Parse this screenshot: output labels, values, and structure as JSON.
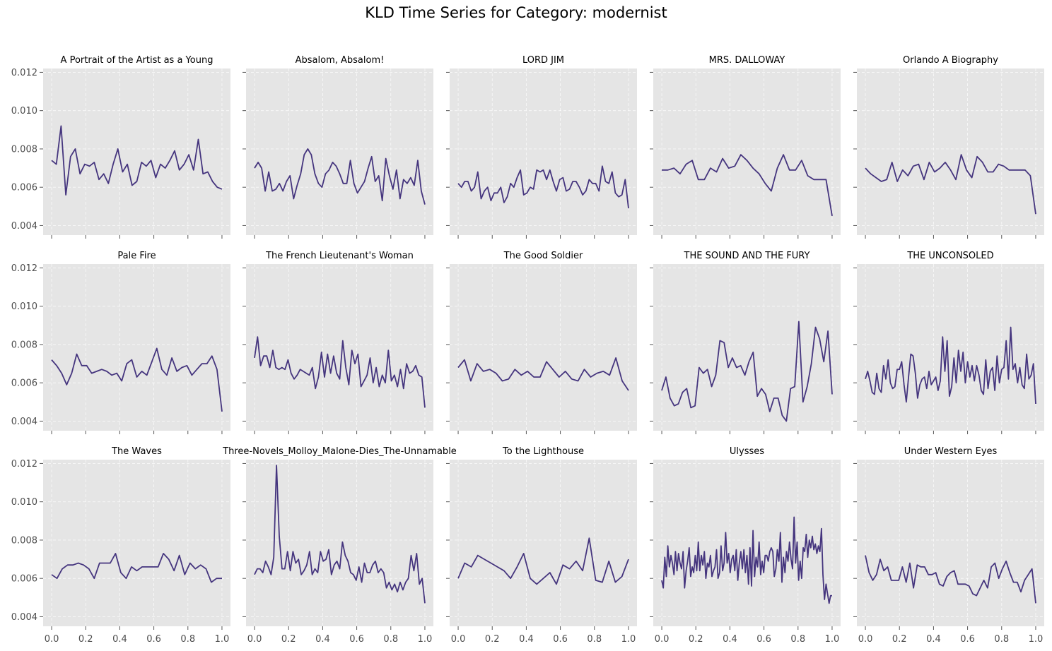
{
  "figure": {
    "suptitle": "KLD Time Series for Category: modernist",
    "line_color": "#45357e",
    "panel_bg": "#e5e5e5",
    "grid_color": "#ffffff"
  },
  "chart_data": {
    "type": "line",
    "layout": "3x5 small multiples, shared axes",
    "xlim": [
      -0.05,
      1.05
    ],
    "ylim": [
      0.0035,
      0.0122
    ],
    "xticks": [
      0.0,
      0.2,
      0.4,
      0.6,
      0.8,
      1.0
    ],
    "xtick_labels": [
      "0.0",
      "0.2",
      "0.4",
      "0.6",
      "0.8",
      "1.0"
    ],
    "yticks": [
      0.004,
      0.006,
      0.008,
      0.01,
      0.012
    ],
    "ytick_labels": [
      "0.004",
      "0.006",
      "0.008",
      "0.010",
      "0.012"
    ],
    "grid": true,
    "panels": [
      {
        "title": "A Portrait of the Artist as a Young",
        "y": [
          0.0074,
          0.0072,
          0.0092,
          0.0056,
          0.0076,
          0.008,
          0.0067,
          0.0072,
          0.0071,
          0.0073,
          0.0064,
          0.0067,
          0.0062,
          0.0072,
          0.008,
          0.0068,
          0.0072,
          0.0061,
          0.0063,
          0.0073,
          0.0071,
          0.0074,
          0.0065,
          0.0072,
          0.007,
          0.0074,
          0.0079,
          0.0069,
          0.0072,
          0.0077,
          0.0069,
          0.0085,
          0.0067,
          0.0068,
          0.0063,
          0.006,
          0.0059
        ]
      },
      {
        "title": "Absalom, Absalom!",
        "y": [
          0.007,
          0.0073,
          0.007,
          0.0058,
          0.0068,
          0.0058,
          0.0059,
          0.0062,
          0.0058,
          0.0063,
          0.0066,
          0.0054,
          0.0061,
          0.0067,
          0.0077,
          0.008,
          0.0077,
          0.0067,
          0.0062,
          0.006,
          0.0067,
          0.0069,
          0.0073,
          0.0071,
          0.0067,
          0.0062,
          0.0062,
          0.0074,
          0.0062,
          0.0057,
          0.006,
          0.0063,
          0.007,
          0.0076,
          0.0063,
          0.0066,
          0.0053,
          0.0075,
          0.0066,
          0.0059,
          0.0069,
          0.0054,
          0.0064,
          0.0062,
          0.0065,
          0.0061,
          0.0074,
          0.0058,
          0.0051
        ]
      },
      {
        "title": "LORD JIM",
        "y": [
          0.0062,
          0.006,
          0.0063,
          0.0063,
          0.0058,
          0.006,
          0.0068,
          0.0054,
          0.0058,
          0.006,
          0.0053,
          0.0057,
          0.0057,
          0.006,
          0.0052,
          0.0055,
          0.0062,
          0.006,
          0.0065,
          0.0069,
          0.0056,
          0.0057,
          0.006,
          0.0059,
          0.0069,
          0.0068,
          0.0069,
          0.0064,
          0.0069,
          0.0063,
          0.0058,
          0.0064,
          0.0065,
          0.0058,
          0.0059,
          0.0063,
          0.0063,
          0.006,
          0.0056,
          0.0058,
          0.0064,
          0.0062,
          0.0062,
          0.0058,
          0.0071,
          0.0063,
          0.0062,
          0.0068,
          0.0057,
          0.0055,
          0.0056,
          0.0064,
          0.0049
        ]
      },
      {
        "title": "MRS. DALLOWAY",
        "y": [
          0.0069,
          0.0069,
          0.007,
          0.0067,
          0.0072,
          0.0074,
          0.0064,
          0.0064,
          0.007,
          0.0068,
          0.0075,
          0.007,
          0.0071,
          0.0077,
          0.0074,
          0.007,
          0.0067,
          0.0062,
          0.0058,
          0.007,
          0.0077,
          0.0069,
          0.0069,
          0.0074,
          0.0066,
          0.0064,
          0.0064,
          0.0064,
          0.0045
        ]
      },
      {
        "title": "Orlando A Biography",
        "y": [
          0.007,
          0.0067,
          0.0065,
          0.0063,
          0.0064,
          0.0073,
          0.0063,
          0.0069,
          0.0066,
          0.0071,
          0.0072,
          0.0064,
          0.0073,
          0.0068,
          0.007,
          0.0073,
          0.0069,
          0.0064,
          0.0077,
          0.0069,
          0.0065,
          0.0076,
          0.0073,
          0.0068,
          0.0068,
          0.0072,
          0.0071,
          0.0069,
          0.0069,
          0.0069,
          0.0069,
          0.0066,
          0.0046
        ]
      },
      {
        "title": "Pale Fire",
        "y": [
          0.0072,
          0.0069,
          0.0065,
          0.0059,
          0.0065,
          0.0075,
          0.0069,
          0.0069,
          0.0065,
          0.0066,
          0.0067,
          0.0066,
          0.0064,
          0.0065,
          0.0061,
          0.007,
          0.0072,
          0.0063,
          0.0066,
          0.0064,
          0.0071,
          0.0078,
          0.0067,
          0.0064,
          0.0073,
          0.0066,
          0.0068,
          0.0069,
          0.0064,
          0.0067,
          0.007,
          0.007,
          0.0074,
          0.0067,
          0.0045
        ]
      },
      {
        "title": "The French Lieutenant's Woman",
        "y": [
          0.0073,
          0.0084,
          0.0069,
          0.0074,
          0.0074,
          0.0068,
          0.0077,
          0.0068,
          0.0067,
          0.0068,
          0.0067,
          0.0072,
          0.0065,
          0.0062,
          0.0064,
          0.0067,
          0.0066,
          0.0065,
          0.0064,
          0.0068,
          0.0057,
          0.0063,
          0.0076,
          0.0063,
          0.0075,
          0.0065,
          0.0074,
          0.0065,
          0.0062,
          0.0082,
          0.0068,
          0.0059,
          0.0077,
          0.007,
          0.0075,
          0.0058,
          0.0061,
          0.0064,
          0.0073,
          0.006,
          0.0068,
          0.0058,
          0.0064,
          0.006,
          0.0077,
          0.0061,
          0.0064,
          0.0058,
          0.0067,
          0.0057,
          0.007,
          0.0065,
          0.0066,
          0.0069,
          0.0064,
          0.0063,
          0.0047
        ]
      },
      {
        "title": "The Good Soldier",
        "y": [
          0.0068,
          0.0072,
          0.0061,
          0.007,
          0.0066,
          0.0067,
          0.0065,
          0.0061,
          0.0062,
          0.0067,
          0.0064,
          0.0066,
          0.0063,
          0.0063,
          0.0071,
          0.0067,
          0.0063,
          0.0066,
          0.0062,
          0.0061,
          0.0067,
          0.0063,
          0.0065,
          0.0066,
          0.0064,
          0.0073,
          0.0061,
          0.0056
        ]
      },
      {
        "title": "THE SOUND AND THE FURY",
        "y": [
          0.0056,
          0.0063,
          0.0052,
          0.0048,
          0.0049,
          0.0055,
          0.0057,
          0.0047,
          0.0048,
          0.0068,
          0.0065,
          0.0067,
          0.0058,
          0.0064,
          0.0082,
          0.0081,
          0.0068,
          0.0073,
          0.0068,
          0.0069,
          0.0064,
          0.0071,
          0.0076,
          0.0053,
          0.0057,
          0.0054,
          0.0045,
          0.0052,
          0.0052,
          0.0043,
          0.004,
          0.0057,
          0.0058,
          0.0092,
          0.005,
          0.0058,
          0.007,
          0.0089,
          0.0083,
          0.0071,
          0.0087,
          0.0054
        ]
      },
      {
        "title": "THE UNCONSOLED",
        "y": [
          0.0062,
          0.0066,
          0.0061,
          0.0055,
          0.0054,
          0.0065,
          0.0057,
          0.0055,
          0.0069,
          0.0062,
          0.0072,
          0.006,
          0.0057,
          0.0058,
          0.0067,
          0.0067,
          0.0071,
          0.0059,
          0.005,
          0.0063,
          0.0075,
          0.0074,
          0.0065,
          0.0052,
          0.0059,
          0.0062,
          0.0063,
          0.0057,
          0.0066,
          0.0059,
          0.0061,
          0.0063,
          0.0056,
          0.0061,
          0.0084,
          0.0066,
          0.0082,
          0.0053,
          0.0058,
          0.0073,
          0.006,
          0.0077,
          0.0066,
          0.0076,
          0.006,
          0.0071,
          0.0063,
          0.0069,
          0.0061,
          0.0069,
          0.0064,
          0.0056,
          0.0054,
          0.0072,
          0.0057,
          0.0066,
          0.0068,
          0.0056,
          0.0074,
          0.006,
          0.0067,
          0.0068,
          0.0082,
          0.0062,
          0.0089,
          0.0067,
          0.007,
          0.006,
          0.0068,
          0.0059,
          0.0057,
          0.0075,
          0.0062,
          0.0064,
          0.007,
          0.0049
        ]
      },
      {
        "title": "The Waves",
        "y": [
          0.0062,
          0.006,
          0.0065,
          0.0067,
          0.0067,
          0.0068,
          0.0067,
          0.0065,
          0.006,
          0.0068,
          0.0068,
          0.0068,
          0.0073,
          0.0063,
          0.006,
          0.0066,
          0.0064,
          0.0066,
          0.0066,
          0.0066,
          0.0066,
          0.0073,
          0.007,
          0.0064,
          0.0072,
          0.0062,
          0.0068,
          0.0065,
          0.0067,
          0.0065,
          0.0058,
          0.006,
          0.006
        ]
      },
      {
        "title": "Three-Novels_Molloy_Malone-Dies_The-Unnamable",
        "y": [
          0.0062,
          0.0065,
          0.0065,
          0.0063,
          0.0069,
          0.0066,
          0.0062,
          0.0071,
          0.0119,
          0.0082,
          0.0065,
          0.0065,
          0.0074,
          0.0064,
          0.0074,
          0.0068,
          0.007,
          0.0062,
          0.0064,
          0.0067,
          0.0074,
          0.0062,
          0.0065,
          0.0063,
          0.0074,
          0.0069,
          0.007,
          0.0075,
          0.0062,
          0.0067,
          0.0069,
          0.0065,
          0.0079,
          0.0072,
          0.0069,
          0.0063,
          0.0062,
          0.0059,
          0.0066,
          0.0058,
          0.0068,
          0.0063,
          0.0063,
          0.0067,
          0.0069,
          0.0063,
          0.0065,
          0.0063,
          0.0055,
          0.0058,
          0.0054,
          0.0057,
          0.0053,
          0.0058,
          0.0054,
          0.0058,
          0.006,
          0.0072,
          0.0064,
          0.0073,
          0.0057,
          0.006,
          0.0047
        ]
      },
      {
        "title": "To the Lighthouse",
        "y": [
          0.006,
          0.0068,
          0.0066,
          0.0072,
          0.007,
          0.0068,
          0.0066,
          0.0064,
          0.006,
          0.0066,
          0.0073,
          0.006,
          0.0057,
          0.006,
          0.0063,
          0.0057,
          0.0067,
          0.0065,
          0.0069,
          0.0064,
          0.0081,
          0.0059,
          0.0058,
          0.0069,
          0.0058,
          0.0061,
          0.007
        ]
      },
      {
        "title": "Ulysses",
        "y": [
          0.0059,
          0.0055,
          0.0071,
          0.0061,
          0.0077,
          0.0066,
          0.0072,
          0.0068,
          0.0062,
          0.0074,
          0.0064,
          0.0073,
          0.0068,
          0.0065,
          0.0074,
          0.0055,
          0.0064,
          0.0069,
          0.0076,
          0.0061,
          0.0066,
          0.0063,
          0.0072,
          0.0064,
          0.0079,
          0.0064,
          0.0072,
          0.0067,
          0.0074,
          0.006,
          0.0068,
          0.0066,
          0.0072,
          0.0061,
          0.0064,
          0.0066,
          0.0075,
          0.006,
          0.0063,
          0.0077,
          0.0064,
          0.0068,
          0.0084,
          0.0068,
          0.0073,
          0.0063,
          0.007,
          0.0072,
          0.0064,
          0.0075,
          0.0059,
          0.0068,
          0.0074,
          0.0065,
          0.0075,
          0.0063,
          0.0072,
          0.0057,
          0.0076,
          0.0056,
          0.0085,
          0.0061,
          0.0071,
          0.0066,
          0.0079,
          0.0062,
          0.0069,
          0.0063,
          0.0072,
          0.0072,
          0.0069,
          0.0074,
          0.0076,
          0.0074,
          0.0061,
          0.0065,
          0.0075,
          0.0069,
          0.0084,
          0.0058,
          0.0071,
          0.0063,
          0.0074,
          0.0069,
          0.0079,
          0.007,
          0.0065,
          0.0092,
          0.0068,
          0.0079,
          0.0059,
          0.0069,
          0.006,
          0.0076,
          0.0074,
          0.0083,
          0.0071,
          0.008,
          0.0076,
          0.0082,
          0.0075,
          0.0078,
          0.0073,
          0.0077,
          0.0074,
          0.0086,
          0.0062,
          0.0049,
          0.0057,
          0.0052,
          0.0047,
          0.0051,
          0.0051
        ]
      },
      {
        "title": "Under Western Eyes",
        "y": [
          0.0072,
          0.0063,
          0.0059,
          0.0062,
          0.007,
          0.0064,
          0.0066,
          0.0059,
          0.0059,
          0.0059,
          0.0066,
          0.0058,
          0.0068,
          0.0055,
          0.0067,
          0.0066,
          0.0066,
          0.0062,
          0.0062,
          0.0063,
          0.0057,
          0.0056,
          0.0061,
          0.0063,
          0.0064,
          0.0057,
          0.0057,
          0.0057,
          0.0056,
          0.0052,
          0.0051,
          0.0055,
          0.0059,
          0.0055,
          0.0066,
          0.0068,
          0.006,
          0.0065,
          0.0069,
          0.0063,
          0.0058,
          0.0058,
          0.0053,
          0.0059,
          0.0062,
          0.0065,
          0.0047
        ]
      }
    ]
  }
}
